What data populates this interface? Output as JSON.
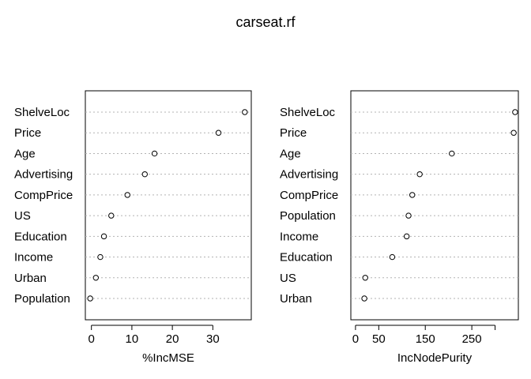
{
  "title": "carseat.rf",
  "chart_data": [
    {
      "type": "scatter",
      "style": "dotchart",
      "xlabel": "%IncMSE",
      "xlim": [
        -1.5,
        39.5
      ],
      "xticks": [
        0,
        10,
        20,
        30
      ],
      "grid": "dotted horizontal guides",
      "categories": [
        "ShelveLoc",
        "Price",
        "Age",
        "Advertising",
        "CompPrice",
        "US",
        "Education",
        "Income",
        "Urban",
        "Population"
      ],
      "values": [
        37.9,
        31.4,
        15.6,
        13.2,
        8.9,
        4.9,
        3.1,
        2.2,
        1.1,
        -0.3
      ]
    },
    {
      "type": "scatter",
      "style": "dotchart",
      "xlabel": "IncNodePurity",
      "xlim": [
        -10,
        350
      ],
      "xticks": [
        0,
        50,
        150,
        250
      ],
      "grid": "dotted horizontal guides",
      "categories": [
        "ShelveLoc",
        "Price",
        "Age",
        "Advertising",
        "CompPrice",
        "Population",
        "Income",
        "Education",
        "US",
        "Urban"
      ],
      "values": [
        343,
        340,
        207,
        138,
        122,
        114,
        110,
        79,
        21,
        19
      ]
    }
  ]
}
